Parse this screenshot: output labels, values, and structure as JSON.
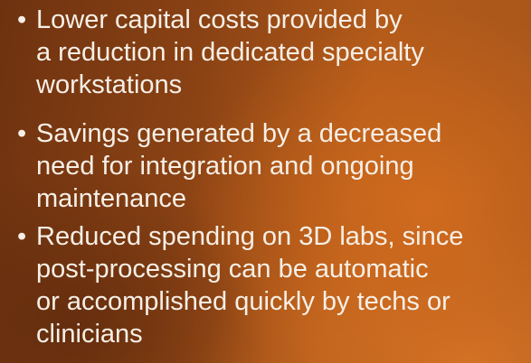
{
  "bullets": [
    {
      "lines": [
        "Lower capital costs provided by",
        "a reduction in dedicated specialty",
        "workstations"
      ]
    },
    {
      "lines": [
        "Savings generated by a decreased",
        "need for integration and ongoing",
        "maintenance"
      ]
    },
    {
      "lines": [
        "Reduced spending on 3D labs, since",
        "post-processing can be automatic",
        "or accomplished quickly by techs or",
        "clinicians"
      ]
    }
  ]
}
